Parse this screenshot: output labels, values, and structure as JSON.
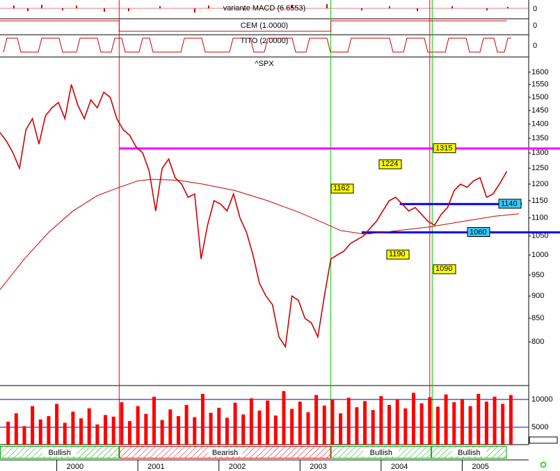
{
  "chart_data": {
    "type": "line",
    "title": "^SPX",
    "indicators": [
      "variante MACD (6.6553)",
      "CEM (1.0000)",
      "TITO (2.0000)"
    ],
    "indicator_ticks": [
      0
    ],
    "log_scale": true,
    "xlim": [
      1999.3,
      2005.82
    ],
    "xticks": [
      2000,
      2001,
      2002,
      2003,
      2004,
      2005
    ],
    "ylim": [
      715,
      1655
    ],
    "yticks": [
      800,
      850,
      900,
      950,
      1000,
      1050,
      1100,
      1150,
      1200,
      1250,
      1300,
      1350,
      1400,
      1450,
      1500,
      1550,
      1600
    ],
    "series": [
      {
        "color": "#cc0000",
        "x": [
          1999.3,
          1999.38,
          1999.46,
          1999.54,
          1999.62,
          1999.7,
          1999.78,
          1999.86,
          1999.94,
          2000.02,
          2000.1,
          2000.18,
          2000.26,
          2000.34,
          2000.42,
          2000.5,
          2000.58,
          2000.66,
          2000.74,
          2000.82,
          2000.9,
          2000.98,
          2001.06,
          2001.14,
          2001.22,
          2001.3,
          2001.38,
          2001.46,
          2001.54,
          2001.62,
          2001.7,
          2001.78,
          2001.86,
          2001.94,
          2002.02,
          2002.1,
          2002.18,
          2002.26,
          2002.34,
          2002.42,
          2002.5,
          2002.58,
          2002.66,
          2002.74,
          2002.82,
          2002.9,
          2002.98,
          2003.06,
          2003.14,
          2003.22,
          2003.3,
          2003.38,
          2003.46,
          2003.54,
          2003.62,
          2003.7,
          2003.78,
          2003.86,
          2003.94,
          2004.02,
          2004.1,
          2004.18,
          2004.26,
          2004.34,
          2004.42,
          2004.5,
          2004.58,
          2004.66,
          2004.74,
          2004.82,
          2004.9,
          2004.98,
          2005.06,
          2005.14,
          2005.22,
          2005.3,
          2005.38,
          2005.46,
          2005.55
        ],
        "values": [
          1370,
          1340,
          1300,
          1250,
          1380,
          1420,
          1330,
          1430,
          1460,
          1480,
          1420,
          1550,
          1470,
          1420,
          1490,
          1460,
          1520,
          1500,
          1420,
          1380,
          1360,
          1320,
          1300,
          1240,
          1120,
          1250,
          1280,
          1220,
          1200,
          1160,
          1170,
          990,
          1080,
          1150,
          1140,
          1120,
          1170,
          1100,
          1060,
          1000,
          930,
          900,
          880,
          810,
          790,
          900,
          890,
          850,
          840,
          810,
          900,
          990,
          1000,
          1010,
          1030,
          1040,
          1050,
          1070,
          1090,
          1120,
          1150,
          1160,
          1140,
          1120,
          1130,
          1110,
          1090,
          1080,
          1110,
          1130,
          1180,
          1200,
          1190,
          1210,
          1220,
          1160,
          1170,
          1200,
          1240
        ]
      },
      {
        "color": "#cc0000",
        "x": [
          1999.3,
          1999.6,
          1999.9,
          2000.2,
          2000.5,
          2000.77,
          2001.0,
          2001.18,
          2001.5,
          2001.8,
          2002.2,
          2002.6,
          2003.0,
          2003.3,
          2003.5,
          2003.8,
          2004.1,
          2004.6,
          2005.0,
          2005.4,
          2005.7
        ],
        "values": [
          915,
          990,
          1060,
          1120,
          1165,
          1190,
          1210,
          1215,
          1212,
          1200,
          1180,
          1150,
          1115,
          1085,
          1065,
          1055,
          1062,
          1075,
          1090,
          1105,
          1112
        ]
      }
    ],
    "levels": [
      {
        "value": 1315,
        "color": "#ff00ff",
        "from": 2000.77
      },
      {
        "value": 1140,
        "color": "#0000ff",
        "from": 2004.23
      },
      {
        "value": 1060,
        "color": "#0000ff",
        "from": 2003.76
      }
    ],
    "annotations": [
      "1224",
      "1162",
      "1190",
      "1090"
    ],
    "signals": [
      {
        "x": 2000.77,
        "color": "#ff0000"
      },
      {
        "x": 2003.38,
        "color": "#00cc00"
      },
      {
        "x": 2004.6,
        "color": "#ff0000"
      },
      {
        "x": 2004.63,
        "color": "#00cc00"
      }
    ],
    "regimes": [
      {
        "label": "Bullish",
        "start": 1999.3,
        "end": 2000.77,
        "color": "#00aa00"
      },
      {
        "label": "Bearish",
        "start": 2000.77,
        "end": 2003.38,
        "color": "#dd0000"
      },
      {
        "label": "Bullish",
        "start": 2003.38,
        "end": 2004.62,
        "color": "#00aa00"
      },
      {
        "label": "Bullish",
        "start": 2004.62,
        "end": 2005.55,
        "color": "#00aa00"
      }
    ],
    "volume": {
      "color": "#ff0000",
      "ylim": [
        1875,
        12500
      ],
      "yticks": [
        5000,
        10000
      ],
      "x": [
        1999.4,
        1999.5,
        1999.6,
        1999.7,
        1999.8,
        1999.9,
        2000.0,
        2000.1,
        2000.2,
        2000.3,
        2000.4,
        2000.5,
        2000.6,
        2000.7,
        2000.8,
        2000.9,
        2001.0,
        2001.1,
        2001.2,
        2001.3,
        2001.4,
        2001.5,
        2001.6,
        2001.7,
        2001.8,
        2001.9,
        2002.0,
        2002.1,
        2002.2,
        2002.3,
        2002.4,
        2002.5,
        2002.6,
        2002.7,
        2002.8,
        2002.9,
        2003.0,
        2003.1,
        2003.2,
        2003.3,
        2003.4,
        2003.5,
        2003.6,
        2003.7,
        2003.8,
        2003.9,
        2004.0,
        2004.1,
        2004.2,
        2004.3,
        2004.4,
        2004.5,
        2004.6,
        2004.7,
        2004.8,
        2004.9,
        2005.0,
        2005.1,
        2005.2,
        2005.3,
        2005.4,
        2005.5,
        2005.6
      ],
      "values": [
        6000,
        7500,
        5200,
        8800,
        6400,
        7000,
        9200,
        5800,
        7800,
        6600,
        8400,
        5500,
        7200,
        6900,
        9500,
        6100,
        8800,
        7400,
        10500,
        6300,
        8200,
        7000,
        9000,
        6800,
        11000,
        7600,
        8500,
        6700,
        9400,
        7300,
        10200,
        8000,
        9800,
        7100,
        11500,
        8300,
        9600,
        7700,
        10800,
        8900,
        9900,
        7500,
        10300,
        8600,
        9700,
        8100,
        10600,
        9000,
        10000,
        8400,
        11200,
        9300,
        10400,
        8700,
        10900,
        9500,
        10100,
        8800,
        11000,
        9600,
        10500,
        9200,
        10800
      ]
    }
  }
}
